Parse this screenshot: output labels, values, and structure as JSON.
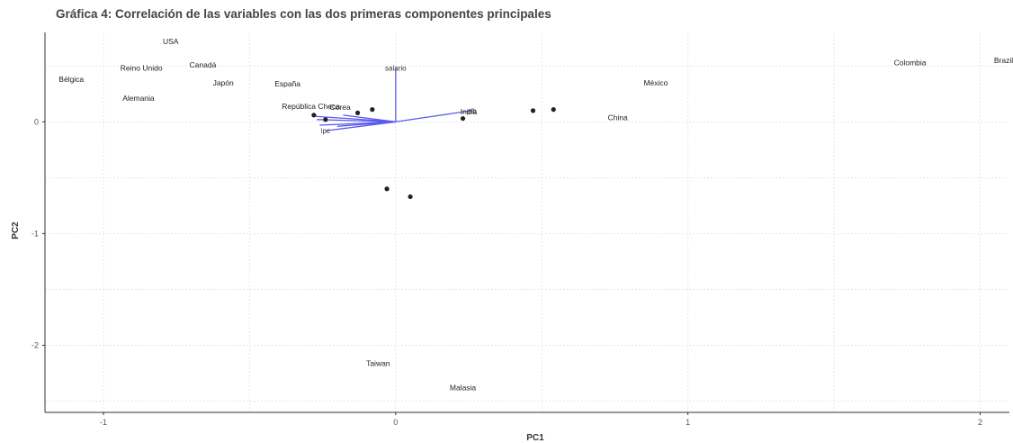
{
  "chart_data": {
    "type": "scatter",
    "title": "Gráfica 4: Correlación de las variables con las dos primeras componentes principales",
    "xlabel": "PC1",
    "ylabel": "PC2",
    "xlim": [
      -1.2,
      2.1
    ],
    "ylim": [
      -2.6,
      0.8
    ],
    "xticks": [
      -1,
      0,
      1,
      2
    ],
    "yticks": [
      -2,
      -1,
      0
    ],
    "xtick_labels": [
      "-1",
      "0",
      "1",
      "2"
    ],
    "ytick_labels": [
      "-2",
      "-1",
      "0"
    ],
    "grid": true,
    "points": [
      {
        "label": "USA",
        "x": -0.77,
        "y": 0.72
      },
      {
        "label": "Reino Unido",
        "x": -0.87,
        "y": 0.48
      },
      {
        "label": "Canadá",
        "x": -0.66,
        "y": 0.51
      },
      {
        "label": "Bélgica",
        "x": -1.11,
        "y": 0.38
      },
      {
        "label": "Japón",
        "x": -0.59,
        "y": 0.35
      },
      {
        "label": "Alemania",
        "x": -0.88,
        "y": 0.21
      },
      {
        "label": "España",
        "x": -0.37,
        "y": 0.34
      },
      {
        "label": "República Checa",
        "x": -0.29,
        "y": 0.14
      },
      {
        "label": "Corea",
        "x": -0.19,
        "y": 0.13
      },
      {
        "label": "México",
        "x": 0.89,
        "y": 0.35
      },
      {
        "label": "China",
        "x": 0.76,
        "y": 0.04
      },
      {
        "label": "India",
        "x": 0.25,
        "y": 0.09
      },
      {
        "label": "Colombia",
        "x": 1.76,
        "y": 0.53
      },
      {
        "label": "Brazil",
        "x": 2.08,
        "y": 0.55
      },
      {
        "label": "Taiwan",
        "x": -0.06,
        "y": -2.16
      },
      {
        "label": "Malasia",
        "x": 0.23,
        "y": -2.38
      },
      {
        "label": "",
        "x": 0.47,
        "y": 0.1
      },
      {
        "label": "",
        "x": 0.54,
        "y": 0.11
      },
      {
        "label": "",
        "x": 0.23,
        "y": 0.03
      },
      {
        "label": "",
        "x": -0.03,
        "y": -0.6
      },
      {
        "label": "",
        "x": 0.05,
        "y": -0.67
      },
      {
        "label": "",
        "x": -0.08,
        "y": 0.11
      },
      {
        "label": "",
        "x": -0.13,
        "y": 0.08
      },
      {
        "label": "",
        "x": -0.28,
        "y": 0.06
      },
      {
        "label": "",
        "x": -0.24,
        "y": 0.02
      }
    ],
    "loadings": [
      {
        "label": "salario",
        "x": 0.0,
        "y": 0.48
      },
      {
        "label": "pib",
        "x": 0.26,
        "y": 0.1
      },
      {
        "label": "",
        "x": -0.28,
        "y": 0.05
      },
      {
        "label": "",
        "x": -0.27,
        "y": 0.02
      },
      {
        "label": "",
        "x": -0.26,
        "y": -0.03
      },
      {
        "label": "ipc",
        "x": -0.24,
        "y": -0.08
      },
      {
        "label": "",
        "x": -0.2,
        "y": -0.04
      },
      {
        "label": "",
        "x": -0.18,
        "y": 0.06
      }
    ],
    "colors": {
      "points": "#222222",
      "loadings": "#5a5aee",
      "grid": "#e6e6e6",
      "axis": "#333333"
    }
  }
}
